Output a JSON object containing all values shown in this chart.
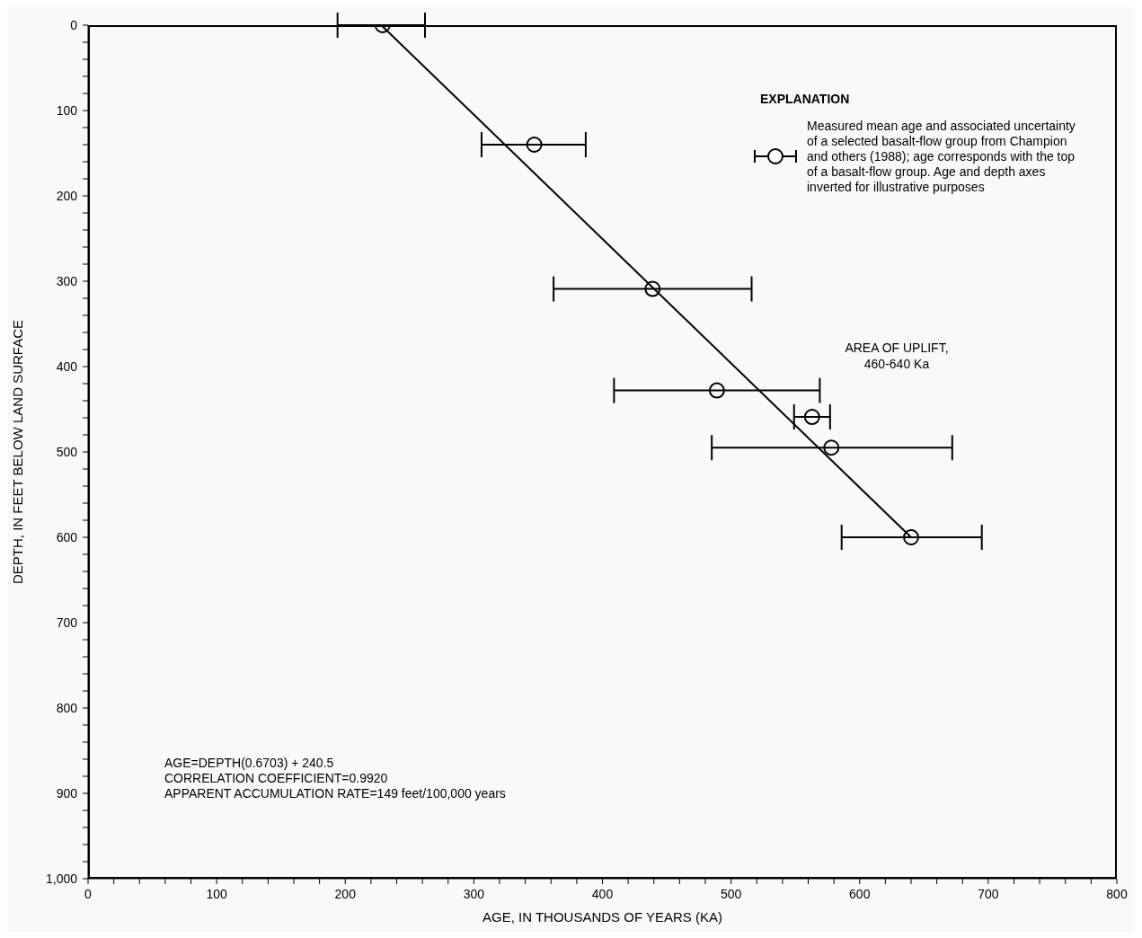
{
  "chart_data": {
    "type": "scatter",
    "xlabel": "AGE, IN THOUSANDS OF YEARS (KA)",
    "ylabel": "DEPTH, IN FEET BELOW LAND SURFACE",
    "legend_title": "EXPLANATION",
    "legend": "top right",
    "marker": "circle",
    "xlim": [
      0,
      800
    ],
    "ylim": [
      1000,
      0
    ],
    "xticks": [
      0,
      {
        "value": 20,
        "label": null
      },
      {
        "value": 40,
        "label": null
      },
      {
        "value": 60,
        "label": null
      },
      {
        "value": 80,
        "label": null
      },
      100,
      {
        "value": 120,
        "label": null
      },
      {
        "value": 140,
        "label": null
      },
      {
        "value": 160,
        "label": null
      },
      {
        "value": 180,
        "label": null
      },
      200,
      {
        "value": 220,
        "label": null
      },
      {
        "value": 240,
        "label": null
      },
      {
        "value": 260,
        "label": null
      },
      {
        "value": 280,
        "label": null
      },
      300,
      {
        "value": 320,
        "label": null
      },
      {
        "value": 340,
        "label": null
      },
      {
        "value": 360,
        "label": null
      },
      {
        "value": 380,
        "label": null
      },
      400,
      {
        "value": 420,
        "label": null
      },
      {
        "value": 440,
        "label": null
      },
      {
        "value": 460,
        "label": null
      },
      {
        "value": 480,
        "label": null
      },
      500,
      {
        "value": 520,
        "label": null
      },
      {
        "value": 540,
        "label": null
      },
      {
        "value": 560,
        "label": null
      },
      {
        "value": 580,
        "label": null
      },
      600,
      {
        "value": 620,
        "label": null
      },
      {
        "value": 640,
        "label": null
      },
      {
        "value": 660,
        "label": null
      },
      {
        "value": 680,
        "label": null
      },
      700,
      {
        "value": 720,
        "label": null
      },
      {
        "value": 740,
        "label": null
      },
      {
        "value": 760,
        "label": null
      },
      {
        "value": 780,
        "label": null
      },
      800
    ],
    "yticks": [
      0,
      {
        "value": 20,
        "label": null
      },
      {
        "value": 40,
        "label": null
      },
      {
        "value": 60,
        "label": null
      },
      {
        "value": 80,
        "label": null
      },
      100,
      {
        "value": 120,
        "label": null
      },
      {
        "value": 140,
        "label": null
      },
      {
        "value": 160,
        "label": null
      },
      {
        "value": 180,
        "label": null
      },
      200,
      {
        "value": 220,
        "label": null
      },
      {
        "value": 240,
        "label": null
      },
      {
        "value": 260,
        "label": null
      },
      {
        "value": 280,
        "label": null
      },
      300,
      {
        "value": 320,
        "label": null
      },
      {
        "value": 340,
        "label": null
      },
      {
        "value": 360,
        "label": null
      },
      {
        "value": 380,
        "label": null
      },
      400,
      {
        "value": 420,
        "label": null
      },
      {
        "value": 440,
        "label": null
      },
      {
        "value": 460,
        "label": null
      },
      {
        "value": 480,
        "label": null
      },
      500,
      {
        "value": 520,
        "label": null
      },
      {
        "value": 540,
        "label": null
      },
      {
        "value": 560,
        "label": null
      },
      {
        "value": 580,
        "label": null
      },
      600,
      {
        "value": 620,
        "label": null
      },
      {
        "value": 640,
        "label": null
      },
      {
        "value": 660,
        "label": null
      },
      {
        "value": 680,
        "label": null
      },
      700,
      {
        "value": 720,
        "label": null
      },
      {
        "value": 740,
        "label": null
      },
      {
        "value": 760,
        "label": null
      },
      {
        "value": 780,
        "label": null
      },
      800,
      {
        "value": 820,
        "label": null
      },
      {
        "value": 840,
        "label": null
      },
      {
        "value": 860,
        "label": null
      },
      {
        "value": 880,
        "label": null
      },
      900,
      {
        "value": 920,
        "label": null
      },
      {
        "value": 940,
        "label": null
      },
      {
        "value": 960,
        "label": null
      },
      {
        "value": 980,
        "label": null
      },
      {
        "value": 1000,
        "label": "1,000"
      }
    ],
    "series": [
      {
        "name": "Measured mean age and associated uncertainty of a selected basalt-flow group from Champion and others (1988); age corresponds with the top of a basalt-flow group. Age and depth axes inverted for illustrative purposes",
        "type": "scatter",
        "color": "#000000",
        "x": [
          229,
          347,
          439,
          489,
          563,
          578,
          640
        ],
        "values": [
          0,
          140,
          309,
          428,
          459,
          495,
          600
        ],
        "xerrors": [
          [
            194,
            262
          ],
          [
            306,
            387
          ],
          [
            362,
            516
          ],
          [
            409,
            569
          ],
          [
            549,
            577
          ],
          [
            485,
            672
          ],
          [
            586,
            695
          ]
        ]
      },
      {
        "type": "line",
        "color": "#000000",
        "marker": "none",
        "line_style": "solid",
        "x": [
          228,
          640
        ],
        "values": [
          0,
          600
        ]
      }
    ],
    "annotations": [
      "AREA OF UPLIFT,\n460-640 Ka",
      "AGE=DEPTH(0.6703) + 240.5",
      "CORRELATION COEFFICIENT=0.9920",
      "APPARENT ACCUMULATION RATE=149 feet/100,000 years"
    ]
  }
}
